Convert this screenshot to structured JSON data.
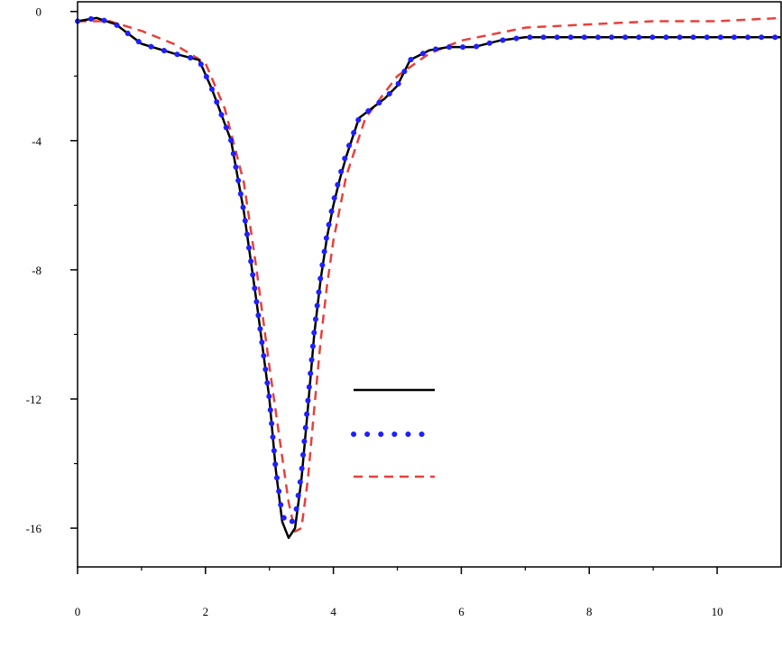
{
  "chart_data": {
    "type": "line",
    "title": "",
    "xlabel": "",
    "ylabel": "",
    "xlim": [
      0,
      11
    ],
    "ylim": [
      -17.2,
      0.3
    ],
    "grid": false,
    "legend_placement": "center-right",
    "x_ticks": [
      0,
      2,
      4,
      6,
      8,
      10
    ],
    "y_ticks": [
      0,
      -4,
      -8,
      -12,
      -16
    ],
    "series": [
      {
        "name": "",
        "color": "#000000",
        "style": "solid",
        "x": [
          0,
          0.3,
          0.6,
          1.0,
          1.5,
          1.9,
          2.1,
          2.4,
          2.6,
          2.8,
          3.0,
          3.1,
          3.2,
          3.3,
          3.4,
          3.5,
          3.6,
          3.7,
          3.8,
          3.9,
          4.0,
          4.1,
          4.2,
          4.4,
          4.6,
          4.8,
          5.0,
          5.2,
          5.5,
          5.8,
          6.2,
          6.6,
          7.0,
          7.5,
          8.0,
          8.5,
          9.0,
          9.5,
          10.0,
          10.5,
          11.0
        ],
        "values": [
          -0.3,
          -0.2,
          -0.4,
          -1.0,
          -1.3,
          -1.5,
          -2.4,
          -4.0,
          -6.2,
          -9.0,
          -12.0,
          -14.2,
          -15.8,
          -16.3,
          -16.0,
          -14.5,
          -12.3,
          -10.0,
          -8.3,
          -7.0,
          -6.0,
          -5.2,
          -4.5,
          -3.3,
          -3.0,
          -2.7,
          -2.3,
          -1.5,
          -1.2,
          -1.1,
          -1.1,
          -0.9,
          -0.8,
          -0.8,
          -0.8,
          -0.8,
          -0.8,
          -0.8,
          -0.8,
          -0.8,
          -0.8
        ]
      },
      {
        "name": "",
        "color": "#1f1fff",
        "style": "dotted",
        "x": [
          0,
          0.3,
          0.6,
          1.0,
          1.5,
          1.9,
          2.1,
          2.4,
          2.6,
          2.8,
          3.0,
          3.1,
          3.2,
          3.3,
          3.4,
          3.5,
          3.6,
          3.7,
          3.8,
          3.9,
          4.0,
          4.1,
          4.2,
          4.4,
          4.6,
          4.8,
          5.0,
          5.2,
          5.5,
          5.8,
          6.2,
          6.6,
          7.0,
          7.5,
          8.0,
          8.5,
          9.0,
          9.5,
          10.0,
          10.5,
          11.0
        ],
        "values": [
          -0.3,
          -0.2,
          -0.4,
          -1.0,
          -1.3,
          -1.5,
          -2.4,
          -4.0,
          -6.2,
          -9.0,
          -12.0,
          -14.2,
          -15.6,
          -15.9,
          -15.7,
          -14.3,
          -12.1,
          -9.9,
          -8.2,
          -6.9,
          -5.9,
          -5.1,
          -4.4,
          -3.3,
          -3.0,
          -2.7,
          -2.3,
          -1.5,
          -1.2,
          -1.1,
          -1.1,
          -0.9,
          -0.8,
          -0.8,
          -0.8,
          -0.8,
          -0.8,
          -0.8,
          -0.8,
          -0.8,
          -0.8
        ]
      },
      {
        "name": "",
        "color": "#e8403a",
        "style": "dashed",
        "x": [
          0,
          0.5,
          1.0,
          1.5,
          2.0,
          2.3,
          2.6,
          2.8,
          3.0,
          3.2,
          3.3,
          3.4,
          3.5,
          3.6,
          3.7,
          3.8,
          3.9,
          4.0,
          4.2,
          4.5,
          5.0,
          5.5,
          6.0,
          6.5,
          7.0,
          8.0,
          9.0,
          10.0,
          11.0
        ],
        "values": [
          -0.3,
          -0.3,
          -0.6,
          -1.0,
          -1.6,
          -3.0,
          -5.3,
          -8.0,
          -11.0,
          -13.8,
          -15.2,
          -16.1,
          -16.0,
          -14.5,
          -12.3,
          -10.2,
          -8.5,
          -7.1,
          -5.1,
          -3.3,
          -2.0,
          -1.3,
          -0.9,
          -0.7,
          -0.5,
          -0.4,
          -0.3,
          -0.3,
          -0.2
        ]
      }
    ]
  }
}
